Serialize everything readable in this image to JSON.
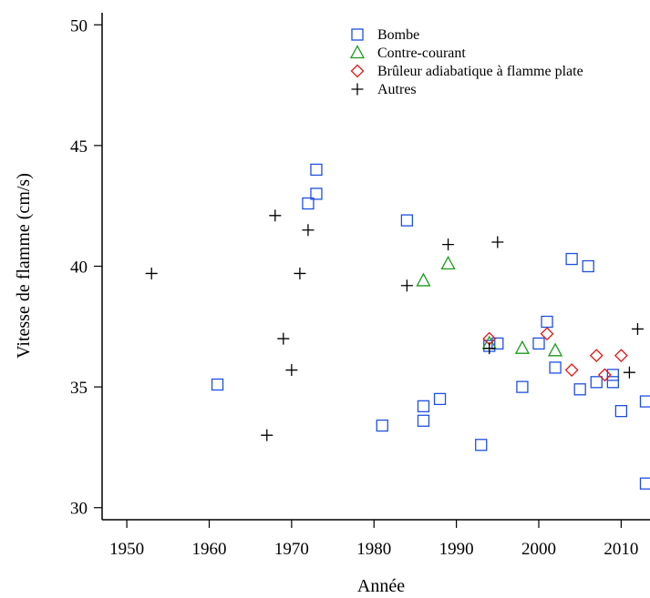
{
  "chart_data": {
    "type": "scatter",
    "xlabel": "Année",
    "ylabel": "Vitesse de flamme (cm/s)",
    "xlim": [
      1947,
      2013.5
    ],
    "ylim": [
      29.5,
      50.5
    ],
    "xticks": [
      1950,
      1960,
      1970,
      1980,
      1990,
      2000,
      2010
    ],
    "yticks": [
      30,
      35,
      40,
      45,
      50
    ],
    "grid": false,
    "legend_position": "top-right",
    "series": [
      {
        "name": "Bombe",
        "marker": "square",
        "color": "#1f4fe0",
        "points": [
          [
            1961,
            35.1
          ],
          [
            1972,
            42.6
          ],
          [
            1973,
            43.0
          ],
          [
            1973,
            44.0
          ],
          [
            1981,
            33.4
          ],
          [
            1984,
            41.9
          ],
          [
            1986,
            34.2
          ],
          [
            1986,
            33.6
          ],
          [
            1988,
            34.5
          ],
          [
            1993,
            32.6
          ],
          [
            1994,
            36.7
          ],
          [
            1995,
            36.8
          ],
          [
            1998,
            35.0
          ],
          [
            2000,
            36.8
          ],
          [
            2001,
            37.7
          ],
          [
            2002,
            35.8
          ],
          [
            2004,
            40.3
          ],
          [
            2005,
            34.9
          ],
          [
            2006,
            40.0
          ],
          [
            2007,
            35.2
          ],
          [
            2009,
            35.5
          ],
          [
            2009,
            35.2
          ],
          [
            2010,
            34.0
          ],
          [
            2013,
            34.4
          ],
          [
            2013,
            31.0
          ]
        ]
      },
      {
        "name": "Contre-courant",
        "marker": "triangle",
        "color": "#1a9a1a",
        "points": [
          [
            1986,
            39.4
          ],
          [
            1989,
            40.1
          ],
          [
            1994,
            36.8
          ],
          [
            1998,
            36.6
          ],
          [
            2002,
            36.5
          ]
        ]
      },
      {
        "name": "Brûleur adiabatique à flamme plate",
        "marker": "diamond",
        "color": "#e01818",
        "points": [
          [
            1994,
            37.0
          ],
          [
            2001,
            37.2
          ],
          [
            2004,
            35.7
          ],
          [
            2007,
            36.3
          ],
          [
            2008,
            35.5
          ],
          [
            2010,
            36.3
          ]
        ]
      },
      {
        "name": "Autres",
        "marker": "plus",
        "color": "#000000",
        "points": [
          [
            1953,
            39.7
          ],
          [
            1967,
            33.0
          ],
          [
            1968,
            42.1
          ],
          [
            1969,
            37.0
          ],
          [
            1970,
            35.7
          ],
          [
            1971,
            39.7
          ],
          [
            1972,
            41.5
          ],
          [
            1984,
            39.2
          ],
          [
            1989,
            40.9
          ],
          [
            1994,
            36.6
          ],
          [
            1995,
            41.0
          ],
          [
            2011,
            35.6
          ],
          [
            2012,
            37.4
          ]
        ]
      }
    ]
  }
}
